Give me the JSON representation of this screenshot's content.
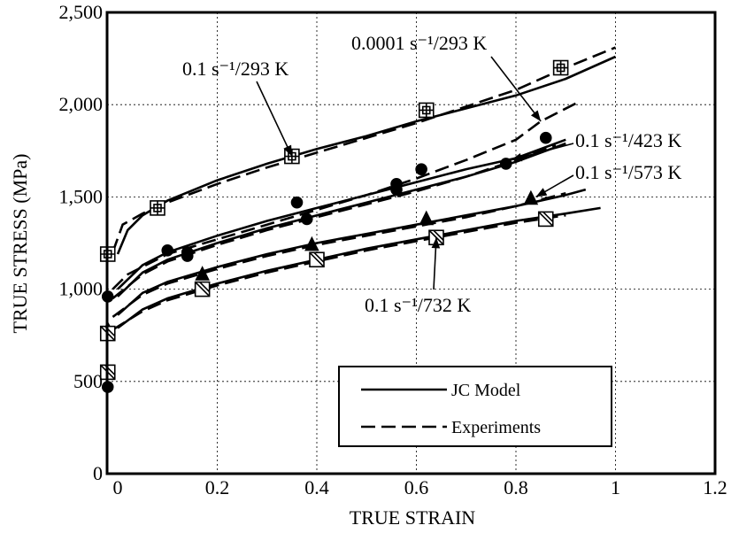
{
  "chart_data": {
    "type": "line",
    "xlabel": "TRUE STRAIN",
    "ylabel": "TRUE STRESS (MPa)",
    "xlim": [
      -0.02,
      1.2
    ],
    "ylim": [
      0,
      2500
    ],
    "x_ticks": [
      "0",
      "0.2",
      "0.4",
      "0.6",
      "0.8",
      "1",
      "1.2"
    ],
    "y_ticks": [
      "0",
      "500",
      "1,000",
      "1,500",
      "2,000",
      "2,500"
    ],
    "grid": true,
    "legend": {
      "placement": "bottom-right",
      "entries": [
        {
          "label": "JC Model",
          "style": "solid"
        },
        {
          "label": "Experiments",
          "style": "dashed"
        }
      ]
    },
    "annotations": [
      {
        "id": "a1",
        "label": "0.1 s⁻¹/293 K",
        "target": [
          0.35,
          1720
        ]
      },
      {
        "id": "a2",
        "label": "0.0001 s⁻¹/293 K",
        "target": [
          0.85,
          1910
        ]
      },
      {
        "id": "a3",
        "label": "0.1 s⁻¹/423 K",
        "target": [
          0.79,
          1700
        ]
      },
      {
        "id": "a4",
        "label": "0.1 s⁻¹/573 K",
        "target": [
          0.84,
          1500
        ]
      },
      {
        "id": "a5",
        "label": "0.1 s⁻¹/732 K",
        "target": [
          0.64,
          1280
        ]
      }
    ],
    "series": [
      {
        "condition": "0.1 s⁻¹/293 K",
        "marker": "square-cross",
        "model": [
          [
            0,
            1190
          ],
          [
            0.02,
            1320
          ],
          [
            0.05,
            1400
          ],
          [
            0.1,
            1480
          ],
          [
            0.2,
            1590
          ],
          [
            0.3,
            1680
          ],
          [
            0.4,
            1760
          ],
          [
            0.5,
            1830
          ],
          [
            0.6,
            1910
          ],
          [
            0.7,
            1980
          ],
          [
            0.8,
            2050
          ],
          [
            0.9,
            2140
          ],
          [
            1.0,
            2260
          ]
        ],
        "experiment": [
          [
            -0.01,
            1200
          ],
          [
            0.01,
            1350
          ],
          [
            0.05,
            1410
          ],
          [
            0.1,
            1470
          ],
          [
            0.2,
            1570
          ],
          [
            0.3,
            1660
          ],
          [
            0.4,
            1740
          ],
          [
            0.5,
            1820
          ],
          [
            0.6,
            1900
          ],
          [
            0.7,
            1990
          ],
          [
            0.8,
            2080
          ],
          [
            0.9,
            2200
          ],
          [
            1.0,
            2310
          ]
        ],
        "markers": [
          [
            -0.02,
            1190
          ],
          [
            0.08,
            1440
          ],
          [
            0.35,
            1720
          ],
          [
            0.62,
            1970
          ],
          [
            0.89,
            2200
          ]
        ]
      },
      {
        "condition": "0.0001 s⁻¹/293 K",
        "marker": "circle",
        "model": [
          [
            0,
            1000
          ],
          [
            0.05,
            1130
          ],
          [
            0.1,
            1200
          ],
          [
            0.2,
            1290
          ],
          [
            0.3,
            1370
          ],
          [
            0.4,
            1440
          ],
          [
            0.5,
            1510
          ],
          [
            0.6,
            1580
          ],
          [
            0.7,
            1650
          ],
          [
            0.8,
            1710
          ],
          [
            0.9,
            1810
          ]
        ],
        "experiment": [
          [
            -0.01,
            1000
          ],
          [
            0.02,
            1080
          ],
          [
            0.1,
            1190
          ],
          [
            0.2,
            1270
          ],
          [
            0.3,
            1350
          ],
          [
            0.4,
            1430
          ],
          [
            0.5,
            1510
          ],
          [
            0.6,
            1600
          ],
          [
            0.7,
            1700
          ],
          [
            0.8,
            1810
          ],
          [
            0.85,
            1910
          ],
          [
            0.93,
            2020
          ]
        ],
        "markers": [
          [
            -0.02,
            470
          ],
          [
            0.1,
            1210
          ],
          [
            0.14,
            1200
          ],
          [
            0.36,
            1470
          ],
          [
            0.56,
            1570
          ],
          [
            0.61,
            1650
          ],
          [
            0.78,
            1680
          ],
          [
            0.86,
            1820
          ]
        ]
      },
      {
        "condition": "0.1 s⁻¹/423 K",
        "marker": "circle",
        "model": [
          [
            0,
            960
          ],
          [
            0.05,
            1090
          ],
          [
            0.1,
            1160
          ],
          [
            0.2,
            1250
          ],
          [
            0.3,
            1330
          ],
          [
            0.4,
            1400
          ],
          [
            0.5,
            1470
          ],
          [
            0.6,
            1540
          ],
          [
            0.7,
            1610
          ],
          [
            0.8,
            1690
          ],
          [
            0.9,
            1790
          ]
        ],
        "experiment": [
          [
            -0.01,
            950
          ],
          [
            0.05,
            1080
          ],
          [
            0.1,
            1150
          ],
          [
            0.2,
            1240
          ],
          [
            0.3,
            1320
          ],
          [
            0.4,
            1390
          ],
          [
            0.5,
            1460
          ],
          [
            0.6,
            1530
          ],
          [
            0.7,
            1610
          ],
          [
            0.8,
            1700
          ],
          [
            0.88,
            1780
          ]
        ],
        "markers": [
          [
            -0.02,
            960
          ],
          [
            0.14,
            1180
          ],
          [
            0.38,
            1380
          ],
          [
            0.56,
            1540
          ]
        ]
      },
      {
        "condition": "0.1 s⁻¹/573 K",
        "marker": "triangle",
        "model": [
          [
            0,
            860
          ],
          [
            0.05,
            980
          ],
          [
            0.1,
            1040
          ],
          [
            0.2,
            1120
          ],
          [
            0.3,
            1190
          ],
          [
            0.4,
            1250
          ],
          [
            0.5,
            1300
          ],
          [
            0.6,
            1350
          ],
          [
            0.7,
            1400
          ],
          [
            0.8,
            1450
          ],
          [
            0.9,
            1510
          ],
          [
            0.94,
            1540
          ]
        ],
        "experiment": [
          [
            -0.01,
            850
          ],
          [
            0.05,
            970
          ],
          [
            0.1,
            1030
          ],
          [
            0.2,
            1110
          ],
          [
            0.3,
            1180
          ],
          [
            0.4,
            1240
          ],
          [
            0.5,
            1290
          ],
          [
            0.6,
            1340
          ],
          [
            0.7,
            1390
          ],
          [
            0.8,
            1450
          ],
          [
            0.9,
            1520
          ]
        ],
        "markers": [
          [
            -0.02,
            780
          ],
          [
            0.17,
            1080
          ],
          [
            0.39,
            1240
          ],
          [
            0.62,
            1380
          ],
          [
            0.83,
            1490
          ]
        ]
      },
      {
        "condition": "0.1 s⁻¹/732 K",
        "marker": "square-slash",
        "model": [
          [
            0,
            790
          ],
          [
            0.05,
            890
          ],
          [
            0.1,
            950
          ],
          [
            0.2,
            1030
          ],
          [
            0.3,
            1100
          ],
          [
            0.4,
            1160
          ],
          [
            0.5,
            1220
          ],
          [
            0.6,
            1270
          ],
          [
            0.7,
            1320
          ],
          [
            0.8,
            1370
          ],
          [
            0.9,
            1410
          ],
          [
            0.97,
            1440
          ]
        ],
        "experiment": [
          [
            -0.01,
            780
          ],
          [
            0.05,
            880
          ],
          [
            0.1,
            940
          ],
          [
            0.2,
            1020
          ],
          [
            0.3,
            1090
          ],
          [
            0.4,
            1150
          ],
          [
            0.5,
            1210
          ],
          [
            0.6,
            1260
          ],
          [
            0.7,
            1310
          ],
          [
            0.8,
            1360
          ],
          [
            0.9,
            1400
          ]
        ],
        "markers": [
          [
            -0.02,
            550
          ],
          [
            -0.02,
            760
          ],
          [
            0.17,
            1000
          ],
          [
            0.4,
            1160
          ],
          [
            0.64,
            1280
          ],
          [
            0.86,
            1380
          ]
        ]
      }
    ]
  }
}
